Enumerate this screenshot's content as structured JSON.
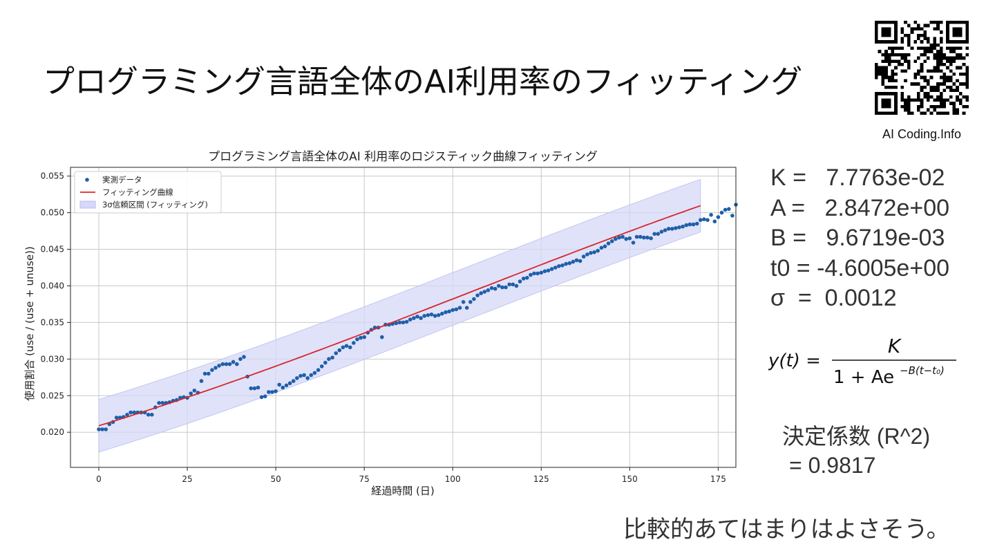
{
  "slide": {
    "title": "プログラミング言語全体のAI利用率のフィッティング",
    "qr_label": "AI Coding.Info",
    "comment": "比較的あてはまりはよさそう。"
  },
  "params": [
    {
      "label": "K = ",
      "value": "  7.7763e-02"
    },
    {
      "label": "A = ",
      "value": "  2.8472e+00"
    },
    {
      "label": "B = ",
      "value": "  9.6719e-03"
    },
    {
      "label": "t0 = ",
      "value": "-4.6005e+00"
    },
    {
      "label": "σ  = ",
      "value": " 0.0012"
    }
  ],
  "formula": {
    "lhs": "y(t) =",
    "numerator": "K",
    "denominator_base": "1 + Ae",
    "exponent": "−B(t−t₀)"
  },
  "r2": {
    "label": "決定係数 (R^2)",
    "value": "= 0.9817"
  },
  "colors": {
    "points": "#1f5fa8",
    "fit_line": "#d62728",
    "band": "#d6d8f8",
    "grid": "#c8c8c8"
  },
  "chart_data": {
    "type": "scatter",
    "title": "プログラミング言語全体のAI 利用率のロジスティック曲線フィッティング",
    "xlabel": "経過時間 (日)",
    "ylabel": "使用割合 (use / (use + unuse))",
    "xlim": [
      -8,
      180
    ],
    "ylim": [
      0.0152,
      0.0562
    ],
    "xticks": [
      0,
      25,
      50,
      75,
      100,
      125,
      150,
      175
    ],
    "yticks": [
      0.02,
      0.025,
      0.03,
      0.035,
      0.04,
      0.045,
      0.05,
      0.055
    ],
    "grid": true,
    "legend_position": "top-left",
    "legend": [
      {
        "label": "実測データ",
        "kind": "points"
      },
      {
        "label": "フィッティング曲線",
        "kind": "line"
      },
      {
        "label": "3σ信頼区間 (フィッティング)",
        "kind": "band"
      }
    ],
    "fit": {
      "K": 0.077763,
      "A": 2.8472,
      "B": 0.0096719,
      "t0": -4.6005,
      "sigma": 0.0012,
      "band_k": 3,
      "x_range": [
        0,
        170
      ]
    },
    "points": [
      [
        0,
        0.0204
      ],
      [
        1,
        0.0204
      ],
      [
        2,
        0.0204
      ],
      [
        3,
        0.0211
      ],
      [
        4,
        0.0214
      ],
      [
        5,
        0.022
      ],
      [
        6,
        0.022
      ],
      [
        7,
        0.0221
      ],
      [
        8,
        0.0224
      ],
      [
        9,
        0.0227
      ],
      [
        10,
        0.0227
      ],
      [
        11,
        0.0227
      ],
      [
        12,
        0.0227
      ],
      [
        13,
        0.0227
      ],
      [
        14,
        0.0224
      ],
      [
        15,
        0.0224
      ],
      [
        16,
        0.0234
      ],
      [
        17,
        0.024
      ],
      [
        18,
        0.024
      ],
      [
        19,
        0.024
      ],
      [
        20,
        0.0241
      ],
      [
        21,
        0.0243
      ],
      [
        22,
        0.0244
      ],
      [
        23,
        0.0247
      ],
      [
        24,
        0.0248
      ],
      [
        25,
        0.0247
      ],
      [
        26,
        0.0253
      ],
      [
        27,
        0.0257
      ],
      [
        28,
        0.0254
      ],
      [
        29,
        0.027
      ],
      [
        30,
        0.028
      ],
      [
        31,
        0.028
      ],
      [
        32,
        0.0285
      ],
      [
        33,
        0.0288
      ],
      [
        34,
        0.0291
      ],
      [
        35,
        0.0293
      ],
      [
        36,
        0.0293
      ],
      [
        37,
        0.0293
      ],
      [
        38,
        0.0296
      ],
      [
        39,
        0.0293
      ],
      [
        40,
        0.03
      ],
      [
        41,
        0.0303
      ],
      [
        42,
        0.0276
      ],
      [
        43,
        0.026
      ],
      [
        44,
        0.026
      ],
      [
        45,
        0.0261
      ],
      [
        46,
        0.0248
      ],
      [
        47,
        0.0249
      ],
      [
        48,
        0.0255
      ],
      [
        49,
        0.0255
      ],
      [
        50,
        0.0256
      ],
      [
        51,
        0.0265
      ],
      [
        52,
        0.0261
      ],
      [
        53,
        0.0264
      ],
      [
        54,
        0.0267
      ],
      [
        55,
        0.027
      ],
      [
        56,
        0.0274
      ],
      [
        57,
        0.0277
      ],
      [
        58,
        0.0278
      ],
      [
        59,
        0.0274
      ],
      [
        60,
        0.0278
      ],
      [
        61,
        0.0281
      ],
      [
        62,
        0.0285
      ],
      [
        63,
        0.029
      ],
      [
        64,
        0.0295
      ],
      [
        65,
        0.03
      ],
      [
        66,
        0.0302
      ],
      [
        67,
        0.0308
      ],
      [
        68,
        0.0312
      ],
      [
        69,
        0.0316
      ],
      [
        70,
        0.0318
      ],
      [
        71,
        0.0316
      ],
      [
        72,
        0.0322
      ],
      [
        73,
        0.0327
      ],
      [
        74,
        0.0329
      ],
      [
        75,
        0.033
      ],
      [
        76,
        0.0336
      ],
      [
        77,
        0.034
      ],
      [
        78,
        0.0343
      ],
      [
        79,
        0.0343
      ],
      [
        80,
        0.033
      ],
      [
        81,
        0.0347
      ],
      [
        82,
        0.0347
      ],
      [
        83,
        0.0348
      ],
      [
        84,
        0.0349
      ],
      [
        85,
        0.035
      ],
      [
        86,
        0.035
      ],
      [
        87,
        0.0351
      ],
      [
        88,
        0.0354
      ],
      [
        89,
        0.0356
      ],
      [
        90,
        0.0358
      ],
      [
        91,
        0.0356
      ],
      [
        92,
        0.0359
      ],
      [
        93,
        0.036
      ],
      [
        94,
        0.0361
      ],
      [
        95,
        0.0359
      ],
      [
        96,
        0.036
      ],
      [
        97,
        0.0362
      ],
      [
        98,
        0.0364
      ],
      [
        99,
        0.0365
      ],
      [
        100,
        0.0367
      ],
      [
        101,
        0.0368
      ],
      [
        102,
        0.037
      ],
      [
        103,
        0.0378
      ],
      [
        104,
        0.037
      ],
      [
        105,
        0.0378
      ],
      [
        106,
        0.0382
      ],
      [
        107,
        0.0387
      ],
      [
        108,
        0.039
      ],
      [
        109,
        0.0392
      ],
      [
        110,
        0.0394
      ],
      [
        111,
        0.0397
      ],
      [
        112,
        0.0396
      ],
      [
        113,
        0.04
      ],
      [
        114,
        0.0398
      ],
      [
        115,
        0.0398
      ],
      [
        116,
        0.0402
      ],
      [
        117,
        0.0402
      ],
      [
        118,
        0.04
      ],
      [
        119,
        0.0406
      ],
      [
        120,
        0.041
      ],
      [
        121,
        0.0411
      ],
      [
        122,
        0.0415
      ],
      [
        123,
        0.0417
      ],
      [
        124,
        0.0417
      ],
      [
        125,
        0.0418
      ],
      [
        126,
        0.042
      ],
      [
        127,
        0.0421
      ],
      [
        128,
        0.0423
      ],
      [
        129,
        0.0425
      ],
      [
        130,
        0.0427
      ],
      [
        131,
        0.0428
      ],
      [
        132,
        0.043
      ],
      [
        133,
        0.0431
      ],
      [
        134,
        0.0433
      ],
      [
        135,
        0.0435
      ],
      [
        136,
        0.0434
      ],
      [
        137,
        0.044
      ],
      [
        138,
        0.0443
      ],
      [
        139,
        0.0445
      ],
      [
        140,
        0.0446
      ],
      [
        141,
        0.0448
      ],
      [
        142,
        0.0452
      ],
      [
        143,
        0.0454
      ],
      [
        144,
        0.0458
      ],
      [
        145,
        0.0461
      ],
      [
        146,
        0.0464
      ],
      [
        147,
        0.0466
      ],
      [
        148,
        0.0467
      ],
      [
        149,
        0.0464
      ],
      [
        150,
        0.0465
      ],
      [
        151,
        0.0459
      ],
      [
        152,
        0.0467
      ],
      [
        153,
        0.0467
      ],
      [
        154,
        0.0466
      ],
      [
        155,
        0.0466
      ],
      [
        156,
        0.0465
      ],
      [
        157,
        0.0471
      ],
      [
        158,
        0.0471
      ],
      [
        159,
        0.0474
      ],
      [
        160,
        0.0476
      ],
      [
        161,
        0.0478
      ],
      [
        162,
        0.0478
      ],
      [
        163,
        0.0479
      ],
      [
        164,
        0.048
      ],
      [
        165,
        0.0481
      ],
      [
        166,
        0.0483
      ],
      [
        167,
        0.0484
      ],
      [
        168,
        0.0484
      ],
      [
        169,
        0.0485
      ],
      [
        170,
        0.049
      ],
      [
        171,
        0.0491
      ],
      [
        172,
        0.049
      ],
      [
        173,
        0.0497
      ],
      [
        174,
        0.0488
      ],
      [
        175,
        0.0494
      ],
      [
        176,
        0.05
      ],
      [
        177,
        0.0504
      ],
      [
        178,
        0.0505
      ],
      [
        179,
        0.0496
      ],
      [
        180,
        0.0511
      ]
    ]
  }
}
